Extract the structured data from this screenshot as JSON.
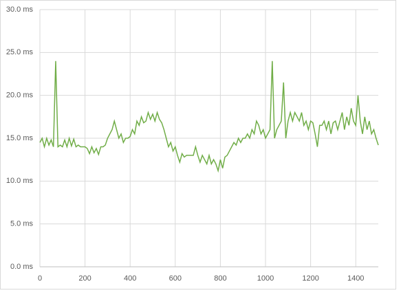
{
  "chart_data": {
    "type": "line",
    "x": [
      0,
      10,
      20,
      30,
      40,
      50,
      60,
      70,
      80,
      90,
      100,
      110,
      120,
      130,
      140,
      150,
      160,
      170,
      180,
      190,
      200,
      210,
      220,
      230,
      240,
      250,
      260,
      270,
      280,
      290,
      300,
      310,
      320,
      330,
      340,
      350,
      360,
      370,
      380,
      390,
      400,
      410,
      420,
      430,
      440,
      450,
      460,
      470,
      480,
      490,
      500,
      510,
      520,
      530,
      540,
      550,
      560,
      570,
      580,
      590,
      600,
      610,
      620,
      630,
      640,
      650,
      660,
      670,
      680,
      690,
      700,
      710,
      720,
      730,
      740,
      750,
      760,
      770,
      780,
      790,
      800,
      810,
      820,
      830,
      840,
      850,
      860,
      870,
      880,
      890,
      900,
      910,
      920,
      930,
      940,
      950,
      960,
      970,
      980,
      990,
      1000,
      1010,
      1020,
      1030,
      1040,
      1050,
      1060,
      1070,
      1080,
      1090,
      1100,
      1110,
      1120,
      1130,
      1140,
      1150,
      1160,
      1170,
      1180,
      1190,
      1200,
      1210,
      1220,
      1230,
      1240,
      1250,
      1260,
      1270,
      1280,
      1290,
      1300,
      1310,
      1320,
      1330,
      1340,
      1350,
      1360,
      1370,
      1380,
      1390,
      1400,
      1410,
      1420,
      1430,
      1440,
      1450,
      1460,
      1470,
      1480,
      1490,
      1500
    ],
    "series": [
      {
        "color": "#70ad47",
        "values": [
          14.5,
          15,
          14,
          15,
          14.2,
          14.8,
          14,
          24,
          14,
          14.2,
          14,
          14.8,
          14,
          15,
          14.1,
          14.9,
          14,
          14.2,
          14,
          14,
          14,
          13.8,
          13.2,
          14,
          13.3,
          13.8,
          13.1,
          14,
          14,
          14.2,
          15,
          15.5,
          16,
          17,
          16,
          15,
          15.5,
          14.5,
          15,
          15,
          15.2,
          16,
          15.5,
          17,
          16.5,
          17.5,
          16.8,
          17,
          18,
          17.2,
          17.8,
          17,
          18,
          17.2,
          16.8,
          16,
          15,
          14,
          14.5,
          13.5,
          14,
          13,
          12.2,
          13.2,
          12.8,
          13,
          13,
          13,
          13,
          14,
          13,
          12.2,
          13,
          12.5,
          12,
          13,
          12,
          12.5,
          12,
          11.2,
          12.5,
          11.5,
          12.8,
          13,
          13.5,
          14,
          14.5,
          14.2,
          15,
          14.5,
          15,
          15,
          15.5,
          15,
          16,
          15.5,
          17,
          16.5,
          15.5,
          16,
          15,
          15.5,
          16,
          24,
          15,
          16,
          16.5,
          17,
          21.5,
          15,
          17,
          18,
          17,
          18,
          17.5,
          17,
          18,
          16.5,
          17,
          16,
          17,
          16.8,
          15.5,
          14,
          16.5,
          16.5,
          17,
          16,
          17,
          15.5,
          16.8,
          17,
          16,
          17,
          18,
          16,
          17.5,
          16.5,
          18.5,
          17,
          16.5,
          20,
          17,
          15.5,
          17.5,
          16,
          17,
          15.5,
          16,
          15,
          14.2
        ]
      }
    ],
    "xlim": [
      0,
      1500
    ],
    "ylim": [
      0,
      30
    ],
    "xticks": [
      0,
      200,
      400,
      600,
      800,
      1000,
      1200,
      1400
    ],
    "yticks": [
      {
        "value": 0,
        "label": "0.0 ms"
      },
      {
        "value": 5,
        "label": "5.0 ms"
      },
      {
        "value": 10,
        "label": "10.0 ms"
      },
      {
        "value": 15,
        "label": "15.0 ms"
      },
      {
        "value": 20,
        "label": "20.0 ms"
      },
      {
        "value": 25,
        "label": "25.0 ms"
      },
      {
        "value": 30,
        "label": "30.0 ms"
      }
    ],
    "grid": true
  }
}
